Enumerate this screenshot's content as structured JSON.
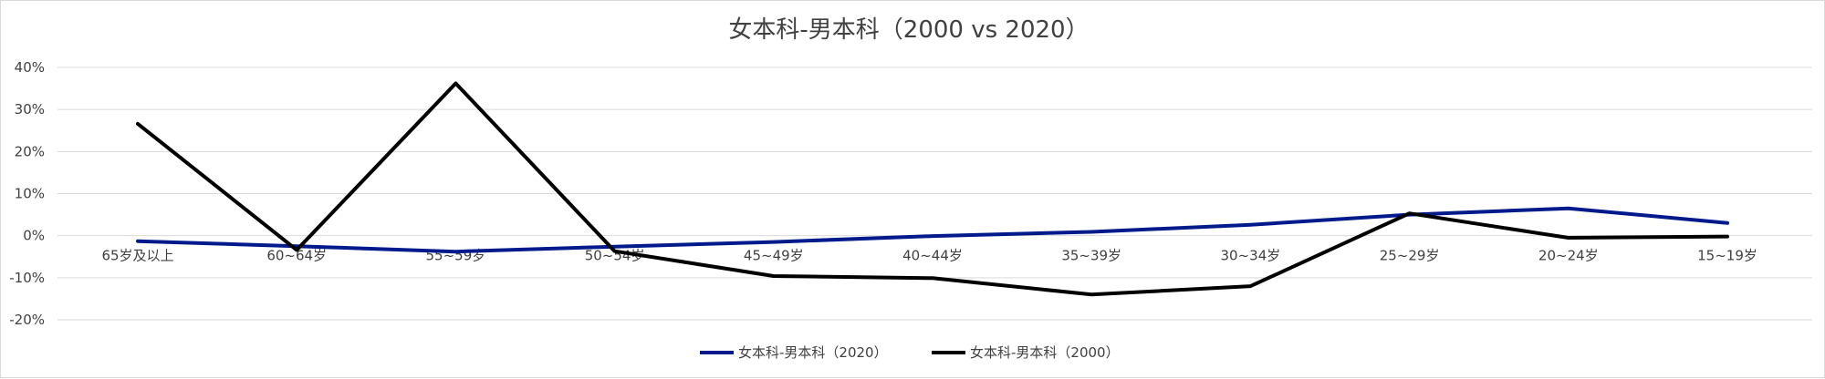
{
  "chart_data": {
    "type": "line",
    "title": "女本科-男本科（2000 vs 2020）",
    "categories": [
      "65岁及以上",
      "60~64岁",
      "55~59岁",
      "50~54岁",
      "45~49岁",
      "40~44岁",
      "35~39岁",
      "30~34岁",
      "25~29岁",
      "20~24岁",
      "15~19岁"
    ],
    "ylim": [
      -0.2,
      0.4
    ],
    "yticks": [
      "-20%",
      "-10%",
      "0%",
      "10%",
      "20%",
      "30%",
      "40%"
    ],
    "ytick_values": [
      -0.2,
      -0.1,
      0,
      0.1,
      0.2,
      0.3,
      0.4
    ],
    "grid": true,
    "legend_position": "bottom",
    "series": [
      {
        "name": "女本科-男本科（2020）",
        "color": "#001a8c",
        "values": [
          -0.013,
          -0.025,
          -0.038,
          -0.026,
          -0.015,
          -0.001,
          0.009,
          0.026,
          0.05,
          0.065,
          0.03
        ]
      },
      {
        "name": "女本科-男本科（2000）",
        "color": "#000000",
        "values": [
          0.266,
          -0.034,
          0.362,
          -0.037,
          -0.096,
          -0.101,
          -0.14,
          -0.12,
          0.053,
          -0.005,
          -0.002
        ]
      }
    ]
  }
}
